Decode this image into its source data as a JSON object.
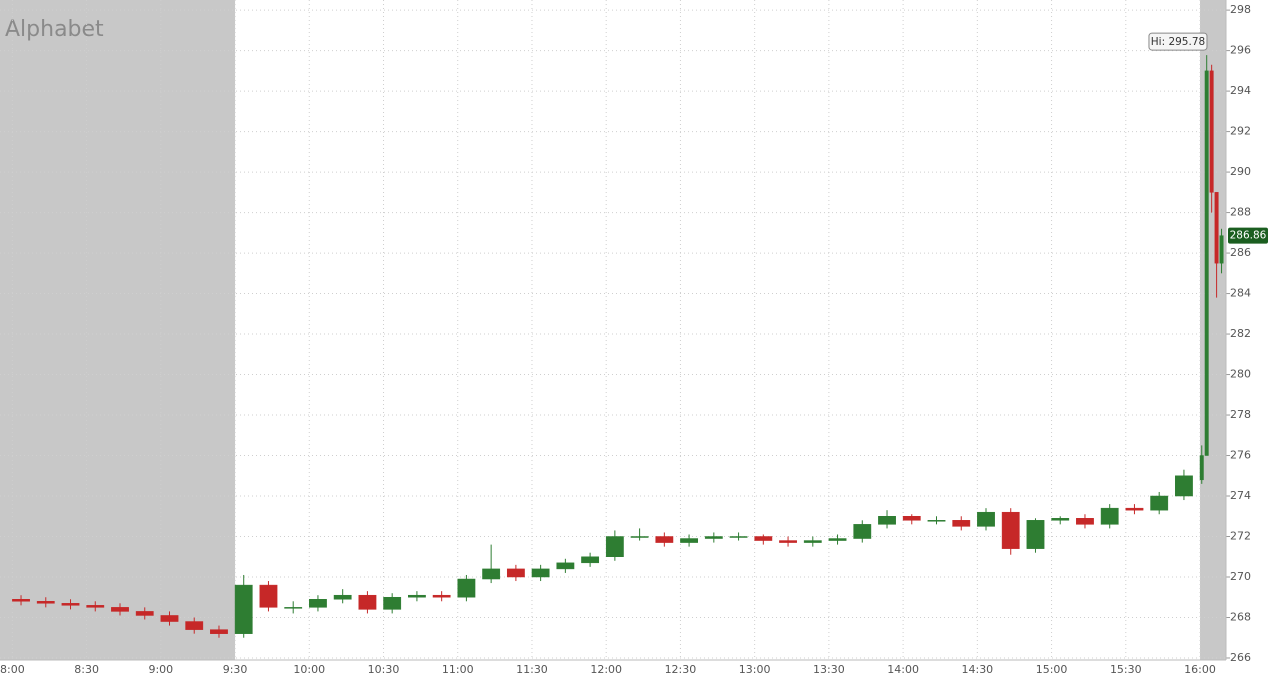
{
  "chart_data": {
    "type": "candlestick",
    "title": "Alphabet",
    "x": [
      480,
      490,
      500,
      510,
      520,
      530,
      540,
      550,
      560,
      570,
      580,
      590,
      600,
      610,
      620,
      630,
      640,
      650,
      660,
      670,
      680,
      690,
      700,
      710,
      720,
      730,
      740,
      750,
      760,
      770,
      780,
      790,
      800,
      810,
      820,
      830,
      840,
      850,
      860,
      870,
      880,
      890,
      900,
      910,
      920,
      930,
      940,
      950,
      960,
      962,
      964,
      966,
      968
    ],
    "open": [
      268.9,
      268.8,
      268.7,
      268.6,
      268.5,
      268.3,
      268.1,
      267.8,
      267.4,
      267.2,
      269.6,
      268.5,
      268.5,
      268.9,
      269.1,
      268.4,
      269.0,
      269.1,
      269.0,
      269.9,
      270.4,
      270.0,
      270.4,
      270.7,
      271.0,
      272.0,
      272.0,
      271.7,
      271.9,
      272.0,
      272.0,
      271.8,
      271.7,
      271.8,
      271.9,
      272.6,
      273.0,
      272.8,
      272.8,
      272.5,
      273.2,
      271.4,
      272.8,
      272.9,
      272.6,
      273.4,
      273.3,
      274.0,
      274.8,
      276.0,
      295.0,
      289.0,
      285.5
    ],
    "high": [
      269.1,
      269.0,
      268.9,
      268.8,
      268.7,
      268.5,
      268.3,
      268.0,
      267.6,
      270.1,
      269.8,
      268.8,
      269.1,
      269.4,
      269.3,
      269.2,
      269.3,
      269.3,
      270.1,
      271.6,
      270.6,
      270.6,
      270.9,
      271.2,
      272.3,
      272.4,
      272.2,
      272.1,
      272.2,
      272.2,
      272.1,
      272.0,
      272.0,
      272.1,
      272.8,
      273.3,
      273.1,
      273.0,
      273.0,
      273.4,
      273.4,
      272.9,
      273.0,
      273.1,
      273.6,
      273.6,
      274.2,
      275.3,
      276.5,
      295.78,
      295.3,
      289.0,
      287.2
    ],
    "low": [
      268.6,
      268.5,
      268.4,
      268.3,
      268.1,
      267.9,
      267.6,
      267.2,
      267.0,
      267.0,
      268.3,
      268.2,
      268.3,
      268.7,
      268.2,
      268.2,
      268.8,
      268.8,
      268.8,
      269.7,
      269.8,
      269.8,
      270.2,
      270.5,
      270.8,
      271.8,
      271.5,
      271.5,
      271.7,
      271.8,
      271.6,
      271.5,
      271.5,
      271.6,
      271.7,
      272.4,
      272.6,
      272.6,
      272.3,
      272.3,
      271.1,
      271.2,
      272.6,
      272.4,
      272.4,
      273.1,
      273.1,
      273.8,
      274.6,
      276.0,
      288.0,
      283.8,
      285.0
    ],
    "close": [
      268.8,
      268.7,
      268.6,
      268.5,
      268.3,
      268.1,
      267.8,
      267.4,
      267.2,
      269.6,
      268.5,
      268.5,
      268.9,
      269.1,
      268.4,
      269.0,
      269.1,
      269.0,
      269.9,
      270.4,
      270.0,
      270.4,
      270.7,
      271.0,
      272.0,
      272.0,
      271.7,
      271.9,
      272.0,
      272.0,
      271.8,
      271.7,
      271.8,
      271.9,
      272.6,
      273.0,
      272.8,
      272.8,
      272.5,
      273.2,
      271.4,
      272.8,
      272.9,
      272.6,
      273.4,
      273.3,
      274.0,
      275.0,
      276.0,
      295.0,
      289.0,
      285.5,
      286.86
    ],
    "up_color": "#2e7d32",
    "down_color": "#c62828",
    "xlim": [
      475,
      970.5
    ],
    "ylim": [
      265.9,
      298.5
    ],
    "xticks": [
      {
        "value": 480,
        "label": "8:00"
      },
      {
        "value": 510,
        "label": "8:30"
      },
      {
        "value": 540,
        "label": "9:00"
      },
      {
        "value": 570,
        "label": "9:30"
      },
      {
        "value": 600,
        "label": "10:00"
      },
      {
        "value": 630,
        "label": "10:30"
      },
      {
        "value": 660,
        "label": "11:00"
      },
      {
        "value": 690,
        "label": "11:30"
      },
      {
        "value": 720,
        "label": "12:00"
      },
      {
        "value": 750,
        "label": "12:30"
      },
      {
        "value": 780,
        "label": "13:00"
      },
      {
        "value": 810,
        "label": "13:30"
      },
      {
        "value": 840,
        "label": "14:00"
      },
      {
        "value": 870,
        "label": "14:30"
      },
      {
        "value": 900,
        "label": "15:00"
      },
      {
        "value": 930,
        "label": "15:30"
      },
      {
        "value": 960,
        "label": "16:00"
      }
    ],
    "yticks": [
      266,
      268,
      270,
      272,
      274,
      276,
      278,
      280,
      282,
      284,
      286,
      288,
      290,
      292,
      294,
      296,
      298
    ],
    "grid": true,
    "extended_hours": [
      {
        "from": 475,
        "to": 570
      },
      {
        "from": 960,
        "to": 970.5
      }
    ],
    "annotations": [
      {
        "label": "Hi: 295.78",
        "value": 295.78,
        "x": 962
      },
      {
        "label": "286.86",
        "value": 286.86,
        "x": 968
      }
    ]
  }
}
